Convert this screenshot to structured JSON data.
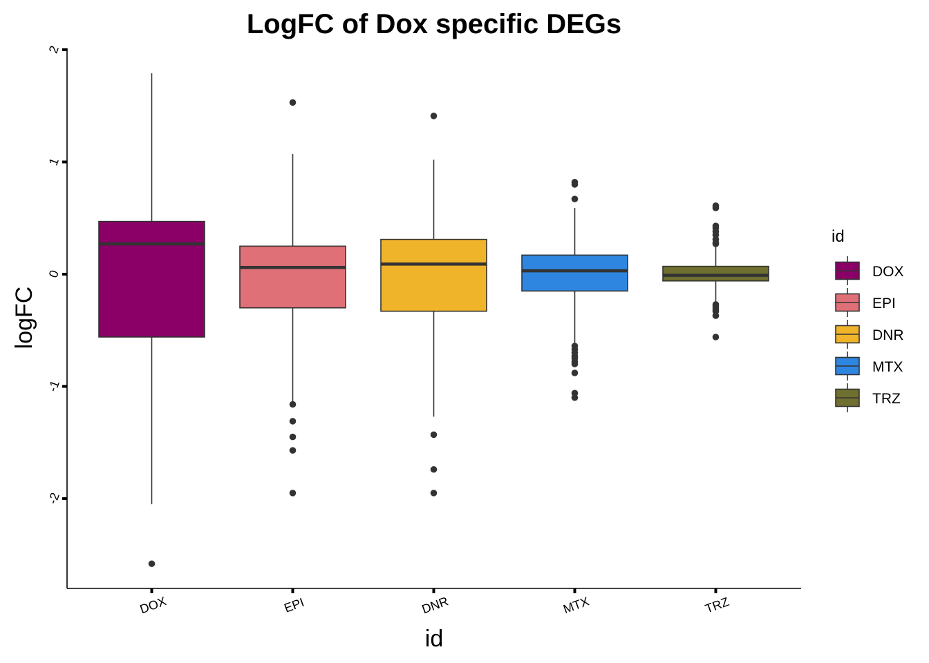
{
  "chart_data": {
    "type": "boxplot",
    "title": "LogFC of Dox specific DEGs",
    "xlabel": "id",
    "ylabel": "logFC",
    "ylim": [
      -2.78,
      2.0
    ],
    "y_ticks": [
      -2,
      -1,
      0,
      1,
      2
    ],
    "grid": false,
    "legend": {
      "title": "id",
      "position": "right"
    },
    "categories": [
      "DOX",
      "EPI",
      "DNR",
      "MTX",
      "TRZ"
    ],
    "colors": [
      "#8B0066",
      "#E07078",
      "#F0B42A",
      "#2E86E0",
      "#6F6F30"
    ],
    "boxes": [
      {
        "name": "DOX",
        "whisker_low": -2.05,
        "q1": -0.56,
        "median": 0.27,
        "q3": 0.47,
        "whisker_high": 1.79,
        "outliers": [
          -2.58
        ]
      },
      {
        "name": "EPI",
        "whisker_low": -1.16,
        "q1": -0.3,
        "median": 0.06,
        "q3": 0.25,
        "whisker_high": 1.07,
        "outliers": [
          1.53,
          -1.16,
          -1.31,
          -1.45,
          -1.57,
          -1.95
        ]
      },
      {
        "name": "DNR",
        "whisker_low": -1.27,
        "q1": -0.33,
        "median": 0.09,
        "q3": 0.31,
        "whisker_high": 1.02,
        "outliers": [
          1.41,
          -1.43,
          -1.74,
          -1.95
        ]
      },
      {
        "name": "MTX",
        "whisker_low": -0.63,
        "q1": -0.15,
        "median": 0.03,
        "q3": 0.17,
        "whisker_high": 0.59,
        "outliers": [
          0.82,
          0.8,
          0.67,
          -0.64,
          -0.67,
          -0.7,
          -0.73,
          -0.75,
          -0.78,
          -0.8,
          -0.88,
          -1.06,
          -1.1
        ]
      },
      {
        "name": "TRZ",
        "whisker_low": -0.25,
        "q1": -0.06,
        "median": -0.01,
        "q3": 0.07,
        "whisker_high": 0.25,
        "outliers": [
          0.61,
          0.59,
          0.43,
          0.41,
          0.38,
          0.35,
          0.31,
          0.28,
          0.27,
          -0.27,
          -0.29,
          -0.31,
          -0.33,
          -0.37,
          -0.56
        ]
      }
    ]
  }
}
